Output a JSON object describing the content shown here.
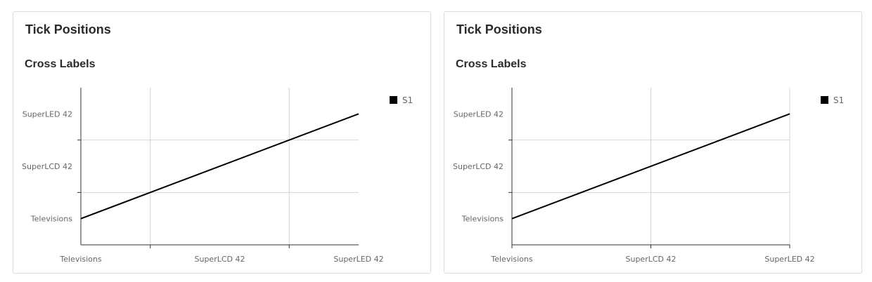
{
  "cards": [
    {
      "card_title": "Tick Positions",
      "chart_data": {
        "type": "line",
        "title": "Cross Labels",
        "tick_placement": "between",
        "categories": [
          "Televisions",
          "SuperLCD 42",
          "SuperLED 42"
        ],
        "x_labels": [
          "Televisions",
          "SuperLCD 42",
          "SuperLED 42"
        ],
        "y_labels": [
          "Televisions",
          "SuperLCD 42",
          "SuperLED 42"
        ],
        "series": [
          {
            "name": "S1",
            "color": "#000000",
            "x": [
              "Televisions",
              "SuperLED 42"
            ],
            "y": [
              "Televisions",
              "SuperLED 42"
            ]
          }
        ],
        "grid": true,
        "legend": "top-right"
      }
    },
    {
      "card_title": "Tick Positions",
      "chart_data": {
        "type": "line",
        "title": "Cross Labels",
        "tick_placement": "on",
        "categories": [
          "Televisions",
          "SuperLCD 42",
          "SuperLED 42"
        ],
        "x_labels": [
          "Televisions",
          "SuperLCD 42",
          "SuperLED 42"
        ],
        "y_labels": [
          "Televisions",
          "SuperLCD 42",
          "SuperLED 42"
        ],
        "series": [
          {
            "name": "S1",
            "color": "#000000",
            "x": [
              "Televisions",
              "SuperLED 42"
            ],
            "y": [
              "Televisions",
              "SuperLED 42"
            ]
          }
        ],
        "grid": true,
        "legend": "top-right"
      }
    }
  ]
}
